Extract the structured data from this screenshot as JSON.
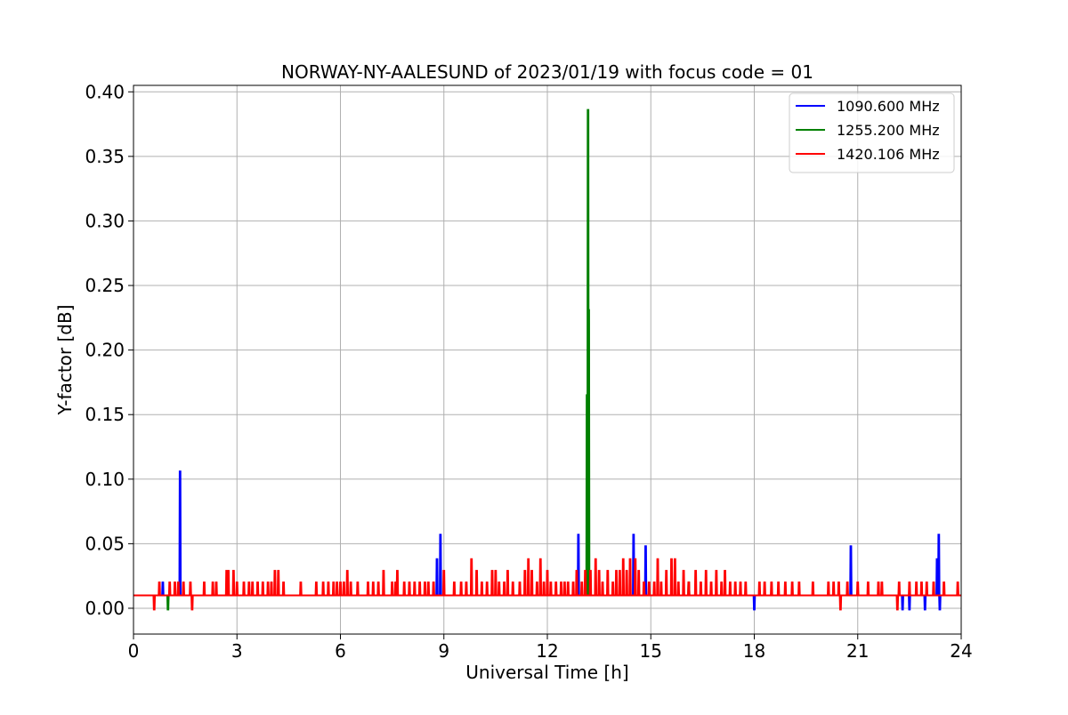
{
  "chart_data": {
    "type": "line",
    "title": "NORWAY-NY-AALESUND of 2023/01/19 with focus code = 01",
    "xlabel": "Universal Time [h]",
    "ylabel": "Y-factor [dB]",
    "xlim": [
      0,
      24
    ],
    "ylim": [
      -0.02,
      0.405
    ],
    "xticks": [
      0,
      3,
      6,
      9,
      12,
      15,
      18,
      21,
      24
    ],
    "xtick_labels": [
      "0",
      "3",
      "6",
      "9",
      "12",
      "15",
      "18",
      "21",
      "24"
    ],
    "yticks": [
      0.0,
      0.05,
      0.1,
      0.15,
      0.2,
      0.25,
      0.3,
      0.35,
      0.4
    ],
    "ytick_labels": [
      "0.00",
      "0.05",
      "0.10",
      "0.15",
      "0.20",
      "0.25",
      "0.30",
      "0.35",
      "0.40"
    ],
    "grid": true,
    "legend_position": "top-right",
    "baseline": 0.01,
    "series": [
      {
        "name": "1090.600 MHz",
        "color": "#0000ff",
        "spikes": [
          [
            0.85,
            0.02
          ],
          [
            1.35,
            0.106
          ],
          [
            8.8,
            0.038
          ],
          [
            8.9,
            0.057
          ],
          [
            12.9,
            0.057
          ],
          [
            14.5,
            0.057
          ],
          [
            14.85,
            0.048
          ],
          [
            18.0,
            -0.001
          ],
          [
            20.8,
            0.048
          ],
          [
            22.3,
            -0.001
          ],
          [
            22.5,
            -0.001
          ],
          [
            22.95,
            -0.001
          ],
          [
            23.3,
            0.038
          ],
          [
            23.35,
            0.057
          ],
          [
            23.38,
            -0.001
          ]
        ]
      },
      {
        "name": "1255.200 MHz",
        "color": "#008000",
        "spikes": [
          [
            1.0,
            -0.001
          ],
          [
            13.15,
            0.165
          ],
          [
            13.18,
            0.386
          ],
          [
            13.2,
            0.231
          ],
          [
            16.1,
            0.02
          ]
        ]
      },
      {
        "name": "1420.106 MHz",
        "color": "#ff0000",
        "spikes": [
          [
            0.6,
            -0.001
          ],
          [
            0.75,
            0.02
          ],
          [
            1.05,
            0.02
          ],
          [
            1.2,
            0.02
          ],
          [
            1.3,
            0.02
          ],
          [
            1.45,
            0.02
          ],
          [
            1.65,
            0.02
          ],
          [
            1.7,
            -0.001
          ],
          [
            2.05,
            0.02
          ],
          [
            2.3,
            0.02
          ],
          [
            2.4,
            0.02
          ],
          [
            2.7,
            0.029
          ],
          [
            2.75,
            0.029
          ],
          [
            2.9,
            0.029
          ],
          [
            3.0,
            0.02
          ],
          [
            3.2,
            0.02
          ],
          [
            3.35,
            0.02
          ],
          [
            3.45,
            0.02
          ],
          [
            3.6,
            0.02
          ],
          [
            3.75,
            0.02
          ],
          [
            3.9,
            0.02
          ],
          [
            4.0,
            0.02
          ],
          [
            4.1,
            0.029
          ],
          [
            4.2,
            0.029
          ],
          [
            4.35,
            0.02
          ],
          [
            4.85,
            0.02
          ],
          [
            5.3,
            0.02
          ],
          [
            5.5,
            0.02
          ],
          [
            5.65,
            0.02
          ],
          [
            5.8,
            0.02
          ],
          [
            5.9,
            0.02
          ],
          [
            6.0,
            0.02
          ],
          [
            6.1,
            0.02
          ],
          [
            6.2,
            0.029
          ],
          [
            6.3,
            0.02
          ],
          [
            6.5,
            0.02
          ],
          [
            6.8,
            0.02
          ],
          [
            6.95,
            0.02
          ],
          [
            7.1,
            0.02
          ],
          [
            7.25,
            0.029
          ],
          [
            7.5,
            0.02
          ],
          [
            7.6,
            0.02
          ],
          [
            7.65,
            0.029
          ],
          [
            7.85,
            0.02
          ],
          [
            8.0,
            0.02
          ],
          [
            8.15,
            0.02
          ],
          [
            8.3,
            0.02
          ],
          [
            8.45,
            0.02
          ],
          [
            8.55,
            0.02
          ],
          [
            8.7,
            0.02
          ],
          [
            9.0,
            0.029
          ],
          [
            9.3,
            0.02
          ],
          [
            9.5,
            0.02
          ],
          [
            9.65,
            0.02
          ],
          [
            9.8,
            0.038
          ],
          [
            9.95,
            0.029
          ],
          [
            10.1,
            0.02
          ],
          [
            10.25,
            0.02
          ],
          [
            10.4,
            0.029
          ],
          [
            10.5,
            0.029
          ],
          [
            10.6,
            0.02
          ],
          [
            10.75,
            0.02
          ],
          [
            10.85,
            0.029
          ],
          [
            11.0,
            0.02
          ],
          [
            11.2,
            0.02
          ],
          [
            11.35,
            0.029
          ],
          [
            11.45,
            0.038
          ],
          [
            11.55,
            0.029
          ],
          [
            11.7,
            0.02
          ],
          [
            11.8,
            0.038
          ],
          [
            11.9,
            0.02
          ],
          [
            12.0,
            0.029
          ],
          [
            12.1,
            0.02
          ],
          [
            12.25,
            0.02
          ],
          [
            12.4,
            0.02
          ],
          [
            12.5,
            0.02
          ],
          [
            12.6,
            0.02
          ],
          [
            12.75,
            0.02
          ],
          [
            12.85,
            0.029
          ],
          [
            13.0,
            0.02
          ],
          [
            13.1,
            0.029
          ],
          [
            13.25,
            0.029
          ],
          [
            13.4,
            0.038
          ],
          [
            13.5,
            0.029
          ],
          [
            13.6,
            0.02
          ],
          [
            13.75,
            0.029
          ],
          [
            13.9,
            0.02
          ],
          [
            14.0,
            0.029
          ],
          [
            14.1,
            0.029
          ],
          [
            14.2,
            0.038
          ],
          [
            14.3,
            0.029
          ],
          [
            14.4,
            0.038
          ],
          [
            14.55,
            0.038
          ],
          [
            14.65,
            0.029
          ],
          [
            14.8,
            0.02
          ],
          [
            14.95,
            0.02
          ],
          [
            15.1,
            0.02
          ],
          [
            15.2,
            0.038
          ],
          [
            15.3,
            0.02
          ],
          [
            15.45,
            0.029
          ],
          [
            15.6,
            0.038
          ],
          [
            15.7,
            0.038
          ],
          [
            15.8,
            0.02
          ],
          [
            15.95,
            0.029
          ],
          [
            16.1,
            0.02
          ],
          [
            16.3,
            0.029
          ],
          [
            16.45,
            0.02
          ],
          [
            16.6,
            0.029
          ],
          [
            16.75,
            0.02
          ],
          [
            16.9,
            0.029
          ],
          [
            17.05,
            0.02
          ],
          [
            17.15,
            0.029
          ],
          [
            17.3,
            0.02
          ],
          [
            17.45,
            0.02
          ],
          [
            17.6,
            0.02
          ],
          [
            17.75,
            0.02
          ],
          [
            18.15,
            0.02
          ],
          [
            18.3,
            0.02
          ],
          [
            18.5,
            0.02
          ],
          [
            18.7,
            0.02
          ],
          [
            18.9,
            0.02
          ],
          [
            19.1,
            0.02
          ],
          [
            19.3,
            0.02
          ],
          [
            19.7,
            0.02
          ],
          [
            20.15,
            0.02
          ],
          [
            20.3,
            0.02
          ],
          [
            20.45,
            0.02
          ],
          [
            20.5,
            -0.001
          ],
          [
            20.7,
            0.02
          ],
          [
            21.0,
            0.02
          ],
          [
            21.3,
            0.02
          ],
          [
            21.6,
            0.02
          ],
          [
            21.7,
            0.02
          ],
          [
            22.15,
            -0.001
          ],
          [
            22.2,
            0.02
          ],
          [
            22.5,
            0.02
          ],
          [
            22.7,
            0.02
          ],
          [
            22.85,
            0.02
          ],
          [
            23.0,
            0.02
          ],
          [
            23.2,
            0.02
          ],
          [
            23.5,
            0.02
          ],
          [
            23.9,
            0.02
          ]
        ]
      }
    ]
  }
}
